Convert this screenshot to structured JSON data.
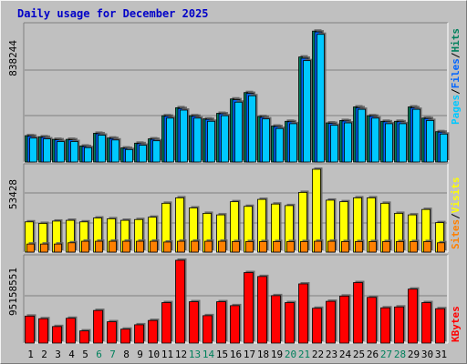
{
  "title": "Daily usage for December 2025",
  "colors": {
    "pages": "#00c8ff",
    "files": "#0064ff",
    "hits": "#00805c",
    "visits": "#ffff00",
    "sites": "#ff8000",
    "kbytes": "#ff0000",
    "weekend_label": "#00805c",
    "weekday_label": "#000000"
  },
  "chart_data": [
    {
      "type": "bar",
      "panel": "hits-files-pages",
      "scale_label": "838244",
      "ylim": [
        0,
        838244
      ],
      "legend": [
        {
          "text": "Pages",
          "color": "#00c8ff"
        },
        {
          "text": "Files",
          "color": "#0064ff"
        },
        {
          "text": "Hits",
          "color": "#00805c"
        }
      ],
      "categories": [
        "1",
        "2",
        "3",
        "4",
        "5",
        "6",
        "7",
        "8",
        "9",
        "10",
        "11",
        "12",
        "13",
        "14",
        "15",
        "16",
        "17",
        "18",
        "19",
        "20",
        "21",
        "22",
        "23",
        "24",
        "25",
        "26",
        "27",
        "28",
        "29",
        "30",
        "31"
      ],
      "weekend": [
        "6",
        "7",
        "13",
        "14",
        "20",
        "21",
        "27",
        "28"
      ],
      "series": [
        {
          "name": "Hits",
          "values": [
            165000,
            158000,
            142000,
            142000,
            100000,
            180000,
            150000,
            88000,
            118000,
            145000,
            290000,
            340000,
            290000,
            270000,
            305000,
            395000,
            435000,
            285000,
            225000,
            255000,
            658000,
            820000,
            245000,
            260000,
            345000,
            290000,
            255000,
            255000,
            345000,
            275000,
            190000
          ]
        },
        {
          "name": "Files",
          "values": [
            162000,
            155000,
            139000,
            139000,
            97000,
            177000,
            147000,
            85000,
            115000,
            142000,
            287000,
            335000,
            287000,
            267000,
            302000,
            390000,
            430000,
            280000,
            222000,
            252000,
            650000,
            815000,
            242000,
            257000,
            340000,
            287000,
            252000,
            252000,
            340000,
            272000,
            187000
          ]
        },
        {
          "name": "Pages",
          "values": [
            150000,
            145000,
            128000,
            128000,
            90000,
            168000,
            138000,
            78000,
            105000,
            133000,
            275000,
            325000,
            275000,
            255000,
            290000,
            375000,
            415000,
            270000,
            210000,
            240000,
            635000,
            800000,
            230000,
            245000,
            330000,
            275000,
            240000,
            240000,
            330000,
            260000,
            175000
          ]
        }
      ]
    },
    {
      "type": "bar",
      "panel": "visits-sites",
      "scale_label": "53428",
      "ylim": [
        0,
        53428
      ],
      "legend": [
        {
          "text": "Sites",
          "color": "#ff8000"
        },
        {
          "text": "Visits",
          "color": "#ffff00"
        }
      ],
      "categories": [
        "1",
        "2",
        "3",
        "4",
        "5",
        "6",
        "7",
        "8",
        "9",
        "10",
        "11",
        "12",
        "13",
        "14",
        "15",
        "16",
        "17",
        "18",
        "19",
        "20",
        "21",
        "22",
        "23",
        "24",
        "25",
        "26",
        "27",
        "28",
        "29",
        "30",
        "31"
      ],
      "series": [
        {
          "name": "Visits",
          "values": [
            19500,
            18500,
            20000,
            20500,
            19500,
            22000,
            21500,
            20500,
            21000,
            22500,
            31500,
            35000,
            28500,
            25000,
            24000,
            32500,
            29500,
            34000,
            31000,
            30000,
            38500,
            53428,
            33500,
            32500,
            35000,
            35000,
            31500,
            25000,
            24000,
            27500,
            19000
          ]
        },
        {
          "name": "Sites",
          "values": [
            5200,
            5200,
            5200,
            6000,
            7000,
            7000,
            7000,
            7000,
            7000,
            7000,
            6500,
            7000,
            7000,
            7000,
            7000,
            6800,
            6800,
            6800,
            6800,
            6800,
            6800,
            7000,
            7000,
            6800,
            6800,
            6800,
            6800,
            6800,
            6800,
            6800,
            6000
          ]
        }
      ]
    },
    {
      "type": "bar",
      "panel": "kbytes",
      "scale_label": "95158551",
      "ylim": [
        0,
        95158551
      ],
      "legend": [
        {
          "text": "KBytes",
          "color": "#ff0000"
        }
      ],
      "categories": [
        "1",
        "2",
        "3",
        "4",
        "5",
        "6",
        "7",
        "8",
        "9",
        "10",
        "11",
        "12",
        "13",
        "14",
        "15",
        "16",
        "17",
        "18",
        "19",
        "20",
        "21",
        "22",
        "23",
        "24",
        "25",
        "26",
        "27",
        "28",
        "29",
        "30",
        "31"
      ],
      "series": [
        {
          "name": "KBytes",
          "values": [
            31000000,
            28000000,
            19000000,
            28500000,
            14000000,
            37500000,
            24500000,
            16000000,
            21000000,
            26000000,
            46500000,
            95158551,
            47500000,
            31500000,
            47500000,
            43000000,
            81000000,
            76500000,
            54500000,
            46500000,
            68000000,
            40000000,
            48000000,
            54000000,
            69500000,
            52500000,
            40500000,
            41500000,
            62000000,
            46500000,
            39500000
          ]
        }
      ]
    }
  ]
}
